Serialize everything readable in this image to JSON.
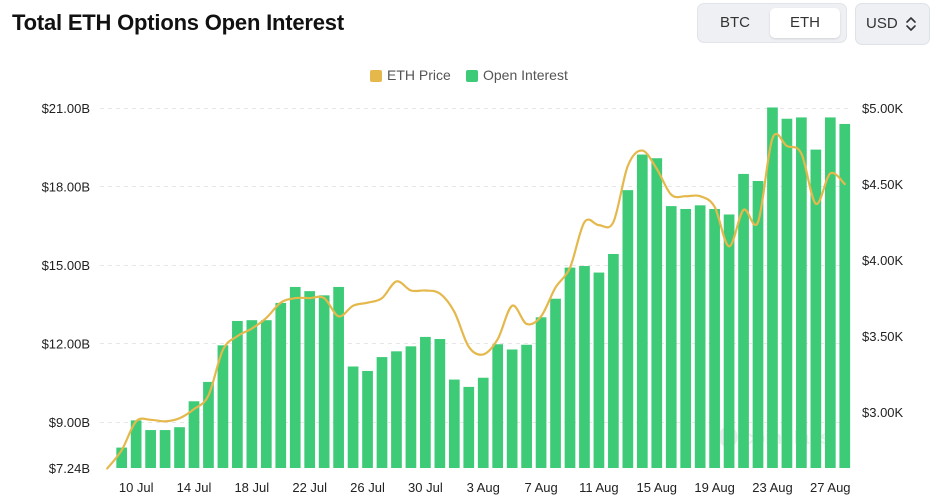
{
  "header": {
    "title": "Total ETH Options Open Interest"
  },
  "asset_toggle": {
    "options": [
      "BTC",
      "ETH"
    ],
    "selected": "ETH"
  },
  "currency_select": {
    "value": "USD",
    "icon": "chevron-updown-icon"
  },
  "watermark": {
    "text": "coinglass"
  },
  "colors": {
    "price_line": "#E5B84C",
    "bars": "#3DCB78",
    "grid": "#e6e6e6"
  },
  "chart_data": {
    "type": "bar",
    "title": "Total ETH Options Open Interest",
    "legend": {
      "placement": "top-center",
      "entries": [
        "ETH Price",
        "Open Interest"
      ]
    },
    "grid": true,
    "x_tick_labels": [
      "10 Jul",
      "14 Jul",
      "18 Jul",
      "22 Jul",
      "26 Jul",
      "30 Jul",
      "3 Aug",
      "7 Aug",
      "11 Aug",
      "15 Aug",
      "19 Aug",
      "23 Aug",
      "27 Aug"
    ],
    "y_left_tick_labels": [
      "$7.24B",
      "$9.00B",
      "$12.00B",
      "$15.00B",
      "$18.00B",
      "$21.00B"
    ],
    "y_right_tick_labels": [
      "$3.00K",
      "$3.50K",
      "$4.00K",
      "$4.50K",
      "$5.00K"
    ],
    "y_left_range": [
      7.24,
      21.0
    ],
    "y_right_range": [
      2.633,
      5.0
    ],
    "series": [
      {
        "name": "Open Interest",
        "type": "bar",
        "axis": "left",
        "unit": "USD billions",
        "points": [
          [
            "8 Jul",
            7.24
          ],
          [
            "9 Jul",
            8.02
          ],
          [
            "10 Jul",
            9.06
          ],
          [
            "11 Jul",
            8.69
          ],
          [
            "12 Jul",
            8.69
          ],
          [
            "13 Jul",
            8.8
          ],
          [
            "14 Jul",
            9.79
          ],
          [
            "15 Jul",
            10.53
          ],
          [
            "16 Jul",
            11.93
          ],
          [
            "17 Jul",
            12.86
          ],
          [
            "18 Jul",
            12.89
          ],
          [
            "19 Jul",
            12.89
          ],
          [
            "20 Jul",
            13.55
          ],
          [
            "21 Jul",
            14.16
          ],
          [
            "22 Jul",
            14.0
          ],
          [
            "23 Jul",
            13.84
          ],
          [
            "24 Jul",
            14.16
          ],
          [
            "25 Jul",
            11.12
          ],
          [
            "26 Jul",
            10.95
          ],
          [
            "27 Jul",
            11.48
          ],
          [
            "28 Jul",
            11.7
          ],
          [
            "29 Jul",
            11.89
          ],
          [
            "30 Jul",
            12.25
          ],
          [
            "31 Jul",
            12.17
          ],
          [
            "1 Aug",
            10.62
          ],
          [
            "2 Aug",
            10.34
          ],
          [
            "3 Aug",
            10.69
          ],
          [
            "4 Aug",
            11.97
          ],
          [
            "5 Aug",
            11.77
          ],
          [
            "6 Aug",
            11.95
          ],
          [
            "7 Aug",
            13.0
          ],
          [
            "8 Aug",
            13.71
          ],
          [
            "9 Aug",
            14.9
          ],
          [
            "10 Aug",
            14.96
          ],
          [
            "11 Aug",
            14.71
          ],
          [
            "12 Aug",
            15.42
          ],
          [
            "13 Aug",
            17.86
          ],
          [
            "14 Aug",
            19.22
          ],
          [
            "15 Aug",
            19.08
          ],
          [
            "16 Aug",
            17.25
          ],
          [
            "17 Aug",
            17.14
          ],
          [
            "18 Aug",
            17.28
          ],
          [
            "19 Aug",
            17.14
          ],
          [
            "20 Aug",
            16.93
          ],
          [
            "21 Aug",
            18.48
          ],
          [
            "22 Aug",
            18.21
          ],
          [
            "23 Aug",
            21.02
          ],
          [
            "24 Aug",
            20.59
          ],
          [
            "25 Aug",
            20.64
          ],
          [
            "26 Aug",
            19.41
          ],
          [
            "27 Aug",
            20.64
          ],
          [
            "28 Aug",
            20.39
          ]
        ]
      },
      {
        "name": "ETH Price",
        "type": "line",
        "axis": "right",
        "unit": "USD thousands",
        "points": [
          [
            "8 Jul",
            2.63
          ],
          [
            "9 Jul",
            2.75
          ],
          [
            "10 Jul",
            2.94
          ],
          [
            "11 Jul",
            2.95
          ],
          [
            "12 Jul",
            2.94
          ],
          [
            "13 Jul",
            2.96
          ],
          [
            "14 Jul",
            3.02
          ],
          [
            "15 Jul",
            3.11
          ],
          [
            "16 Jul",
            3.41
          ],
          [
            "17 Jul",
            3.5
          ],
          [
            "18 Jul",
            3.55
          ],
          [
            "19 Jul",
            3.62
          ],
          [
            "20 Jul",
            3.72
          ],
          [
            "21 Jul",
            3.75
          ],
          [
            "22 Jul",
            3.75
          ],
          [
            "23 Jul",
            3.75
          ],
          [
            "24 Jul",
            3.63
          ],
          [
            "25 Jul",
            3.7
          ],
          [
            "26 Jul",
            3.72
          ],
          [
            "27 Jul",
            3.75
          ],
          [
            "28 Jul",
            3.86
          ],
          [
            "29 Jul",
            3.8
          ],
          [
            "30 Jul",
            3.8
          ],
          [
            "31 Jul",
            3.78
          ],
          [
            "1 Aug",
            3.66
          ],
          [
            "2 Aug",
            3.43
          ],
          [
            "3 Aug",
            3.38
          ],
          [
            "4 Aug",
            3.48
          ],
          [
            "5 Aug",
            3.7
          ],
          [
            "6 Aug",
            3.58
          ],
          [
            "7 Aug",
            3.63
          ],
          [
            "8 Aug",
            3.82
          ],
          [
            "9 Aug",
            3.95
          ],
          [
            "10 Aug",
            4.25
          ],
          [
            "11 Aug",
            4.23
          ],
          [
            "12 Aug",
            4.25
          ],
          [
            "13 Aug",
            4.62
          ],
          [
            "14 Aug",
            4.72
          ],
          [
            "15 Aug",
            4.6
          ],
          [
            "16 Aug",
            4.43
          ],
          [
            "17 Aug",
            4.42
          ],
          [
            "18 Aug",
            4.42
          ],
          [
            "19 Aug",
            4.35
          ],
          [
            "20 Aug",
            4.09
          ],
          [
            "21 Aug",
            4.33
          ],
          [
            "22 Aug",
            4.25
          ],
          [
            "23 Aug",
            4.8
          ],
          [
            "24 Aug",
            4.75
          ],
          [
            "25 Aug",
            4.7
          ],
          [
            "26 Aug",
            4.37
          ],
          [
            "27 Aug",
            4.57
          ],
          [
            "28 Aug",
            4.5
          ]
        ]
      }
    ]
  }
}
